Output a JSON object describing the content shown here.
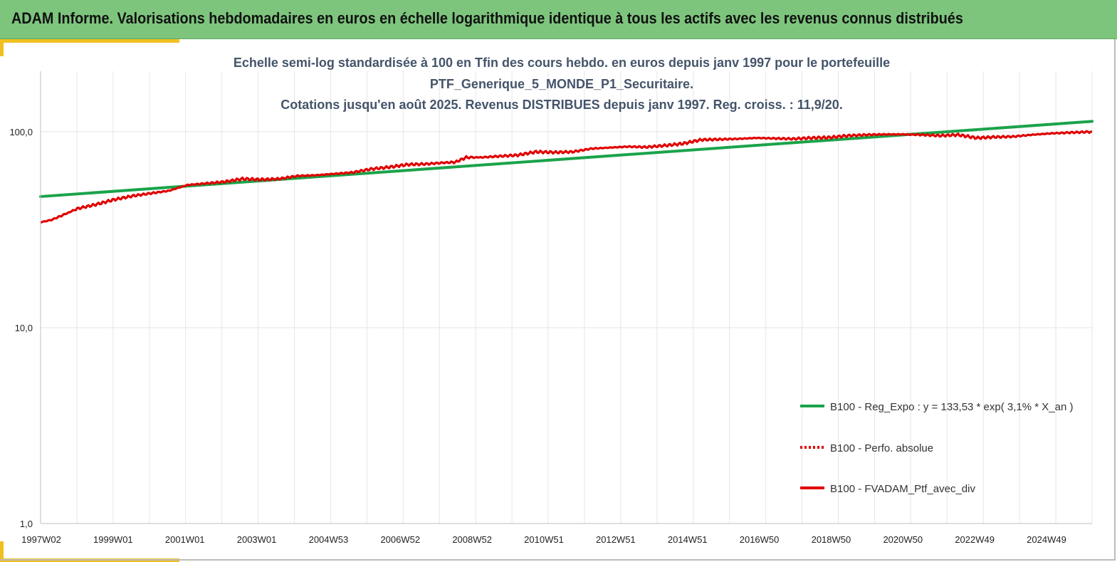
{
  "header": {
    "title": "ADAM Informe. Valorisations hebdomadaires en euros en échelle logarithmique identique à tous les actifs avec les revenus connus distribués"
  },
  "colors": {
    "header_bg": "#7dc57d",
    "accent": "#f0c020",
    "regression_line": "#1aa34a",
    "portfolio_line": "#e00000",
    "grid": "#e6e6e6"
  },
  "chart_data": {
    "type": "line",
    "title_lines": [
      "Echelle semi-log standardisée à 100 en Tfin des cours hebdo.  en euros depuis janv 1997 pour le portefeuille",
      "PTF_Generique_5_MONDE_P1_Securitaire.",
      "Cotations  jusqu'en août 2025. Revenus DISTRIBUES depuis janv 1997. Reg. croiss. : 11,9/20."
    ],
    "y_scale": "log",
    "ylim": [
      1,
      200
    ],
    "y_ticks": [
      {
        "value": 1,
        "label": "1,0"
      },
      {
        "value": 10,
        "label": "10,0"
      },
      {
        "value": 100,
        "label": "100,0"
      }
    ],
    "x_ticks": [
      "1997W02",
      "1999W01",
      "2001W01",
      "2003W01",
      "2004W53",
      "2006W52",
      "2008W52",
      "2010W51",
      "2012W51",
      "2014W51",
      "2016W50",
      "2018W50",
      "2020W50",
      "2022W49",
      "2024W49"
    ],
    "x_range_years": [
      1997.0,
      2025.65
    ],
    "grid": true,
    "legend_position": "bottom-right",
    "series": [
      {
        "name": "B100 - Reg_Expo : y = 133,53 * exp( 3,1% *  X_an )",
        "style": "solid-green",
        "x": [
          1997.0,
          2025.65
        ],
        "values": [
          46.7,
          113.0
        ]
      },
      {
        "name": "B100 - Perfo. absolue",
        "style": "dotted-red",
        "x": [],
        "values": []
      },
      {
        "name": "B100 - FVADAM_Ptf_avec_div",
        "style": "solid-red",
        "x": [
          1997.0,
          1997.3,
          1997.6,
          1998.0,
          1998.5,
          1999.0,
          1999.5,
          2000.0,
          2000.5,
          2001.0,
          2001.5,
          2002.0,
          2002.5,
          2003.0,
          2003.5,
          2004.0,
          2004.5,
          2005.0,
          2005.5,
          2006.0,
          2006.5,
          2007.0,
          2007.5,
          2008.0,
          2008.3,
          2008.6,
          2009.0,
          2009.5,
          2010.0,
          2010.5,
          2011.0,
          2011.5,
          2012.0,
          2012.5,
          2013.0,
          2013.5,
          2014.0,
          2014.5,
          2015.0,
          2015.5,
          2016.0,
          2016.5,
          2017.0,
          2017.5,
          2018.0,
          2018.5,
          2019.0,
          2019.5,
          2020.0,
          2020.5,
          2021.0,
          2021.5,
          2022.0,
          2022.5,
          2023.0,
          2023.5,
          2024.0,
          2024.5,
          2025.0,
          2025.65
        ],
        "values": [
          34.5,
          35.5,
          37.5,
          40.5,
          42.5,
          45.0,
          47.0,
          48.5,
          50.0,
          53.5,
          54.5,
          55.5,
          57.5,
          57.0,
          57.5,
          59.5,
          60.0,
          61.0,
          62.0,
          64.5,
          66.0,
          68.0,
          68.5,
          69.5,
          70.0,
          74.0,
          74.0,
          75.0,
          76.0,
          79.0,
          78.5,
          79.0,
          82.0,
          83.0,
          84.0,
          83.5,
          85.0,
          87.0,
          91.0,
          91.5,
          92.0,
          93.0,
          92.5,
          92.0,
          93.0,
          93.5,
          95.5,
          96.5,
          97.0,
          97.0,
          96.5,
          95.5,
          96.5,
          93.0,
          94.0,
          94.5,
          96.5,
          98.0,
          99.0,
          100.0
        ]
      }
    ]
  }
}
